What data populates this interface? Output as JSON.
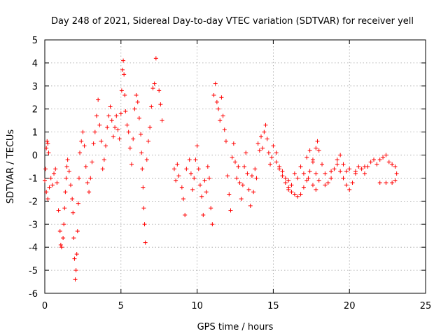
{
  "chart_data": {
    "type": "scatter",
    "title": "Day 248 of 2021, Sidereal Day-to-day VTEC variation (SDTVAR) for receiver yell",
    "xlabel": "GPS time / hours",
    "ylabel": "SDTVAR / TECUs",
    "xlim": [
      0,
      25
    ],
    "ylim": [
      -6,
      5
    ],
    "xticks": [
      0,
      5,
      10,
      15,
      20,
      25
    ],
    "yticks": [
      -6,
      -5,
      -4,
      -3,
      -2,
      -1,
      0,
      1,
      2,
      3,
      4,
      5
    ],
    "grid": true,
    "marker": "+",
    "color": "#ff0000",
    "series": [
      {
        "name": "SDTVAR",
        "points": [
          [
            0.0,
            -1.1
          ],
          [
            0.05,
            -0.6
          ],
          [
            0.1,
            0.3
          ],
          [
            0.15,
            0.6
          ],
          [
            0.2,
            0.5
          ],
          [
            0.25,
            0.1
          ],
          [
            0.1,
            -1.6
          ],
          [
            0.2,
            -1.9
          ],
          [
            0.3,
            -1.4
          ],
          [
            0.4,
            -1.0
          ],
          [
            0.5,
            -1.3
          ],
          [
            0.6,
            -0.8
          ],
          [
            0.7,
            -0.6
          ],
          [
            0.8,
            -1.2
          ],
          [
            0.9,
            -2.4
          ],
          [
            1.0,
            -3.3
          ],
          [
            1.05,
            -3.9
          ],
          [
            1.1,
            -4.0
          ],
          [
            1.2,
            -3.6
          ],
          [
            1.25,
            -3.0
          ],
          [
            1.3,
            -2.3
          ],
          [
            1.35,
            -1.6
          ],
          [
            1.4,
            -1.0
          ],
          [
            1.45,
            -0.5
          ],
          [
            1.5,
            -0.2
          ],
          [
            1.6,
            -0.7
          ],
          [
            1.7,
            -1.3
          ],
          [
            1.8,
            -1.9
          ],
          [
            1.85,
            -2.5
          ],
          [
            1.9,
            -3.6
          ],
          [
            1.95,
            -4.5
          ],
          [
            2.0,
            -5.4
          ],
          [
            2.05,
            -5.0
          ],
          [
            2.1,
            -4.3
          ],
          [
            2.15,
            -3.3
          ],
          [
            2.2,
            -2.1
          ],
          [
            2.25,
            -1.0
          ],
          [
            2.3,
            0.1
          ],
          [
            2.4,
            0.6
          ],
          [
            2.5,
            1.0
          ],
          [
            2.6,
            0.4
          ],
          [
            2.7,
            -0.5
          ],
          [
            2.8,
            -1.2
          ],
          [
            2.9,
            -1.6
          ],
          [
            3.0,
            -1.0
          ],
          [
            3.1,
            -0.3
          ],
          [
            3.2,
            0.5
          ],
          [
            3.3,
            1.0
          ],
          [
            3.4,
            1.7
          ],
          [
            3.5,
            2.4
          ],
          [
            3.6,
            1.3
          ],
          [
            3.7,
            0.6
          ],
          [
            3.8,
            -0.6
          ],
          [
            3.9,
            -0.2
          ],
          [
            4.0,
            0.4
          ],
          [
            4.1,
            1.2
          ],
          [
            4.2,
            1.7
          ],
          [
            4.3,
            2.1
          ],
          [
            4.4,
            1.5
          ],
          [
            4.5,
            0.8
          ],
          [
            4.6,
            1.2
          ],
          [
            4.7,
            1.7
          ],
          [
            4.8,
            1.1
          ],
          [
            4.9,
            0.7
          ],
          [
            5.0,
            1.8
          ],
          [
            5.05,
            2.8
          ],
          [
            5.1,
            3.7
          ],
          [
            5.15,
            4.1
          ],
          [
            5.2,
            3.5
          ],
          [
            5.25,
            2.6
          ],
          [
            5.3,
            1.9
          ],
          [
            5.4,
            1.3
          ],
          [
            5.5,
            1.0
          ],
          [
            5.6,
            0.3
          ],
          [
            5.7,
            -0.4
          ],
          [
            5.8,
            0.7
          ],
          [
            5.9,
            2.0
          ],
          [
            6.0,
            2.6
          ],
          [
            6.1,
            2.3
          ],
          [
            6.2,
            1.6
          ],
          [
            6.3,
            0.9
          ],
          [
            6.35,
            0.1
          ],
          [
            6.4,
            -0.6
          ],
          [
            6.45,
            -1.4
          ],
          [
            6.5,
            -2.3
          ],
          [
            6.55,
            -3.0
          ],
          [
            6.6,
            -3.8
          ],
          [
            6.7,
            -0.2
          ],
          [
            6.8,
            0.6
          ],
          [
            6.9,
            1.2
          ],
          [
            7.0,
            2.1
          ],
          [
            7.1,
            2.9
          ],
          [
            7.2,
            3.1
          ],
          [
            7.3,
            4.2
          ],
          [
            7.5,
            2.8
          ],
          [
            7.6,
            2.2
          ],
          [
            7.7,
            1.5
          ],
          [
            8.5,
            -0.6
          ],
          [
            8.6,
            -1.1
          ],
          [
            8.7,
            -0.4
          ],
          [
            8.8,
            -0.9
          ],
          [
            9.0,
            -1.4
          ],
          [
            9.1,
            -1.9
          ],
          [
            9.2,
            -2.6
          ],
          [
            9.3,
            -0.6
          ],
          [
            9.5,
            -0.2
          ],
          [
            9.6,
            -0.8
          ],
          [
            9.7,
            -1.5
          ],
          [
            9.8,
            -1.0
          ],
          [
            9.9,
            -0.2
          ],
          [
            10.0,
            0.4
          ],
          [
            10.1,
            -0.6
          ],
          [
            10.2,
            -1.3
          ],
          [
            10.3,
            -1.8
          ],
          [
            10.4,
            -2.6
          ],
          [
            10.5,
            -1.1
          ],
          [
            10.6,
            -1.6
          ],
          [
            10.7,
            -0.5
          ],
          [
            10.8,
            -1.0
          ],
          [
            10.9,
            -2.3
          ],
          [
            11.0,
            -3.0
          ],
          [
            11.1,
            2.6
          ],
          [
            11.2,
            3.1
          ],
          [
            11.3,
            2.3
          ],
          [
            11.4,
            2.0
          ],
          [
            11.5,
            1.5
          ],
          [
            11.6,
            2.5
          ],
          [
            11.7,
            1.7
          ],
          [
            11.8,
            1.1
          ],
          [
            11.9,
            0.6
          ],
          [
            12.0,
            -0.9
          ],
          [
            12.1,
            -1.7
          ],
          [
            12.2,
            -2.4
          ],
          [
            12.3,
            -0.1
          ],
          [
            12.4,
            0.5
          ],
          [
            12.5,
            -0.3
          ],
          [
            12.6,
            -1.0
          ],
          [
            12.7,
            -0.5
          ],
          [
            12.8,
            -1.2
          ],
          [
            12.9,
            -1.9
          ],
          [
            13.0,
            -1.3
          ],
          [
            13.1,
            -0.5
          ],
          [
            13.2,
            0.1
          ],
          [
            13.3,
            -0.8
          ],
          [
            13.4,
            -1.5
          ],
          [
            13.5,
            -2.2
          ],
          [
            13.6,
            -0.9
          ],
          [
            13.7,
            -1.6
          ],
          [
            13.8,
            -0.6
          ],
          [
            13.9,
            -1.0
          ],
          [
            14.0,
            0.5
          ],
          [
            14.1,
            0.2
          ],
          [
            14.2,
            0.8
          ],
          [
            14.3,
            0.3
          ],
          [
            14.4,
            1.0
          ],
          [
            14.5,
            1.3
          ],
          [
            14.6,
            0.7
          ],
          [
            14.7,
            0.1
          ],
          [
            14.8,
            -0.4
          ],
          [
            14.9,
            -0.1
          ],
          [
            15.0,
            0.4
          ],
          [
            15.2,
            -0.3
          ],
          [
            15.4,
            -0.5
          ],
          [
            15.6,
            -0.7
          ],
          [
            15.8,
            -1.0
          ],
          [
            16.0,
            -1.4
          ],
          [
            16.2,
            -1.6
          ],
          [
            16.4,
            -1.7
          ],
          [
            16.6,
            -1.8
          ],
          [
            16.8,
            -1.7
          ],
          [
            17.0,
            -1.4
          ],
          [
            17.2,
            -1.1
          ],
          [
            17.4,
            -0.7
          ],
          [
            17.6,
            -0.2
          ],
          [
            17.8,
            0.3
          ],
          [
            17.9,
            0.6
          ],
          [
            18.0,
            0.2
          ],
          [
            18.2,
            -0.4
          ],
          [
            18.4,
            -0.8
          ],
          [
            18.6,
            -1.2
          ],
          [
            18.8,
            -1.0
          ],
          [
            19.0,
            -0.6
          ],
          [
            19.2,
            -0.4
          ],
          [
            19.4,
            -0.7
          ],
          [
            19.6,
            -1.0
          ],
          [
            19.8,
            -1.3
          ],
          [
            20.0,
            -1.5
          ],
          [
            20.2,
            -1.2
          ],
          [
            20.4,
            -0.8
          ],
          [
            20.6,
            -0.5
          ],
          [
            20.8,
            -0.6
          ],
          [
            21.0,
            -0.8
          ],
          [
            21.2,
            -0.5
          ],
          [
            21.4,
            -0.3
          ],
          [
            21.6,
            -0.2
          ],
          [
            21.8,
            -0.4
          ],
          [
            22.0,
            -0.2
          ],
          [
            22.2,
            -0.1
          ],
          [
            22.4,
            0.0
          ],
          [
            22.6,
            -0.3
          ],
          [
            22.8,
            -0.4
          ],
          [
            23.0,
            -0.5
          ],
          [
            23.1,
            -0.8
          ],
          [
            16.0,
            -1.1
          ],
          [
            16.4,
            -0.8
          ],
          [
            16.8,
            -0.5
          ],
          [
            17.2,
            -0.1
          ],
          [
            17.4,
            0.2
          ],
          [
            17.6,
            -0.3
          ],
          [
            17.8,
            -0.8
          ],
          [
            18.0,
            -1.1
          ],
          [
            18.4,
            -1.3
          ],
          [
            18.8,
            -0.7
          ],
          [
            19.2,
            -0.2
          ],
          [
            19.4,
            0.0
          ],
          [
            19.6,
            -0.4
          ],
          [
            19.8,
            -0.7
          ],
          [
            20.0,
            -0.6
          ],
          [
            20.4,
            -0.7
          ],
          [
            21.0,
            -0.5
          ],
          [
            22.0,
            -1.2
          ],
          [
            22.4,
            -1.2
          ],
          [
            22.8,
            -1.2
          ],
          [
            23.0,
            -1.1
          ],
          [
            15.2,
            0.1
          ],
          [
            15.4,
            -0.6
          ],
          [
            15.6,
            -0.9
          ],
          [
            15.8,
            -1.2
          ],
          [
            16.0,
            -1.5
          ],
          [
            16.2,
            -1.3
          ],
          [
            16.6,
            -1.0
          ],
          [
            17.0,
            -0.8
          ],
          [
            17.3,
            -1.0
          ],
          [
            17.6,
            -1.3
          ],
          [
            17.8,
            -1.5
          ]
        ]
      }
    ]
  }
}
